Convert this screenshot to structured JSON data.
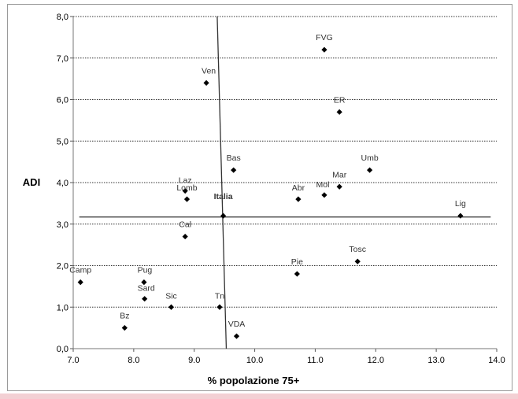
{
  "chart_data": {
    "type": "scatter",
    "title": "",
    "xlabel": "% popolazione 75+",
    "ylabel": "ADI",
    "xlim": [
      7.0,
      14.0
    ],
    "ylim": [
      0.0,
      8.0
    ],
    "x_ticks": [
      "7.0",
      "8.0",
      "9.0",
      "10.0",
      "11.0",
      "12.0",
      "13.0",
      "14.0"
    ],
    "y_ticks": [
      "0,0",
      "1,0",
      "2,0",
      "3,0",
      "4,0",
      "5,0",
      "6,0",
      "7,0",
      "8,0"
    ],
    "grid": "horizontal dotted",
    "marker": "diamond",
    "marker_color": "#000000",
    "points": [
      {
        "label": "FVG",
        "x": 11.15,
        "y": 7.2
      },
      {
        "label": "Ven",
        "x": 9.2,
        "y": 6.4
      },
      {
        "label": "ER",
        "x": 11.4,
        "y": 5.7
      },
      {
        "label": "Bas",
        "x": 9.65,
        "y": 4.3
      },
      {
        "label": "Umb",
        "x": 11.9,
        "y": 4.3
      },
      {
        "label": "Laz",
        "x": 8.85,
        "y": 3.8
      },
      {
        "label": "Lomb",
        "x": 8.88,
        "y": 3.6
      },
      {
        "label": "Mar",
        "x": 11.4,
        "y": 3.9
      },
      {
        "label": "Mol",
        "x": 11.15,
        "y": 3.7
      },
      {
        "label": "Abr",
        "x": 10.72,
        "y": 3.6
      },
      {
        "label": "Italia",
        "x": 9.48,
        "y": 3.2,
        "bold": true
      },
      {
        "label": "Lig",
        "x": 13.4,
        "y": 3.2
      },
      {
        "label": "Cal",
        "x": 8.85,
        "y": 2.7
      },
      {
        "label": "Tosc",
        "x": 11.7,
        "y": 2.1
      },
      {
        "label": "Pie",
        "x": 10.7,
        "y": 1.8
      },
      {
        "label": "Camp",
        "x": 7.12,
        "y": 1.6
      },
      {
        "label": "Pug",
        "x": 8.17,
        "y": 1.6
      },
      {
        "label": "Sard",
        "x": 8.18,
        "y": 1.2
      },
      {
        "label": "Sic",
        "x": 8.62,
        "y": 1.0
      },
      {
        "label": "Tn",
        "x": 9.42,
        "y": 1.0
      },
      {
        "label": "Bz",
        "x": 7.85,
        "y": 0.5
      },
      {
        "label": "VDA",
        "x": 9.7,
        "y": 0.3
      }
    ],
    "reference_lines": {
      "horizontal": {
        "y": 3.17,
        "x_from": 7.1,
        "x_to": 13.9
      },
      "vertical": {
        "x_top": 9.38,
        "x_bottom": 9.53,
        "y_from": 8.0,
        "y_to": 0.0
      }
    }
  }
}
